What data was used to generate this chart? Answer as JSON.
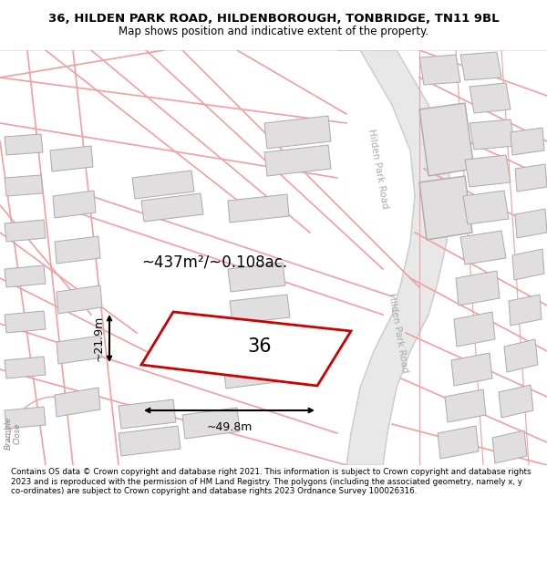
{
  "title_line1": "36, HILDEN PARK ROAD, HILDENBOROUGH, TONBRIDGE, TN11 9BL",
  "title_line2": "Map shows position and indicative extent of the property.",
  "footnote": "Contains OS data © Crown copyright and database right 2021. This information is subject to Crown copyright and database rights 2023 and is reproduced with the permission of HM Land Registry. The polygons (including the associated geometry, namely x, y co-ordinates) are subject to Crown copyright and database rights 2023 Ordnance Survey 100026316.",
  "map_bg": "#ffffff",
  "road_line_color": "#f0a0a0",
  "road_fill_color": "#e8e8e8",
  "road_border_color": "#cccccc",
  "building_fill": "#e0dede",
  "building_edge": "#aaaaaa",
  "highlight_color": "#cc0000",
  "highlight_fill": "#ffffff",
  "dim_color": "#111111",
  "area_text": "~437m²/~0.108ac.",
  "label_36": "36",
  "dim_width": "~49.8m",
  "dim_height": "~21.9m",
  "road_label": "Hilden Park Road",
  "road_text_color": "#aaaaaa"
}
